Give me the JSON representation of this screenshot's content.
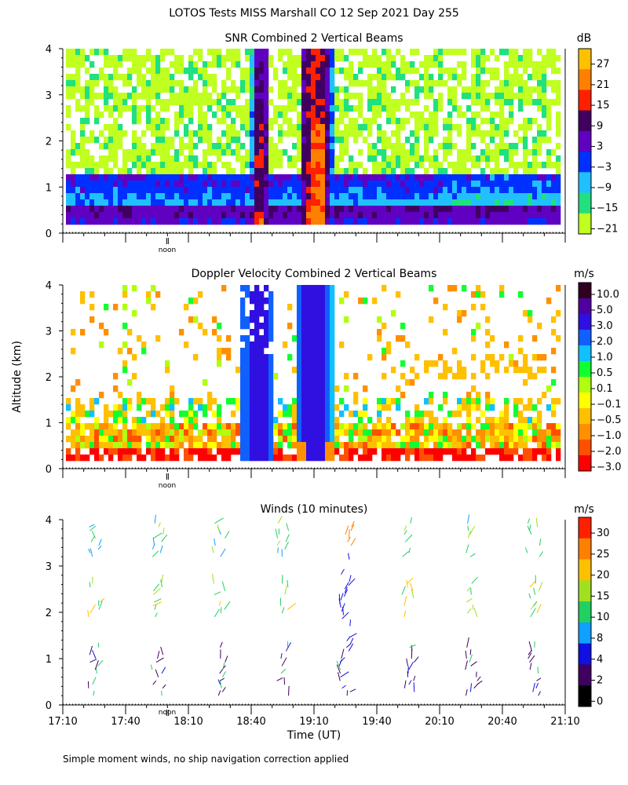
{
  "figure_title": "LOTOS Tests MISS Marshall CO  12 Sep 2021 Day 255",
  "footer_note": "Simple moment winds, no ship navigation correction applied",
  "noon_label": "noon",
  "y_axis_label": "Altitude (km)",
  "x_axis_label": "Time (UT)",
  "chart_data": [
    {
      "type": "heatmap",
      "title": "SNR Combined 2 Vertical Beams",
      "unit": "dB",
      "xlim": [
        "17:10",
        "21:10"
      ],
      "ylim": [
        0,
        4
      ],
      "y_ticks": [
        "0",
        "1",
        "2",
        "3",
        "4"
      ],
      "colorbar_labels": [
        "27",
        "21",
        "15",
        "9",
        "3",
        "−3",
        "−9",
        "−15",
        "−21"
      ],
      "colorbar_colors": [
        "#ffc000",
        "#ff8000",
        "#ff2000",
        "#400060",
        "#6000c0",
        "#0030ff",
        "#20c0ff",
        "#20e080",
        "#c0ff20"
      ],
      "features": [
        {
          "name": "plume-1",
          "time": "18:39",
          "height_km": [
            0.3,
            4.0
          ],
          "peak_snr_db": 21
        },
        {
          "name": "plume-2",
          "time": "19:09",
          "height_km": [
            0.3,
            4.0
          ],
          "peak_snr_db": 21
        },
        {
          "name": "boundary-layer",
          "height_km": [
            0.2,
            1.3
          ],
          "snr_db": 3
        }
      ]
    },
    {
      "type": "heatmap",
      "title": "Doppler Velocity Combined 2 Vertical Beams",
      "unit": "m/s",
      "xlim": [
        "17:10",
        "21:10"
      ],
      "ylim": [
        0,
        4
      ],
      "y_ticks": [
        "0",
        "1",
        "2",
        "3",
        "4"
      ],
      "colorbar_labels": [
        "10.0",
        "5.0",
        "3.0",
        "2.0",
        "1.0",
        "0.5",
        "0.1",
        "−0.1",
        "−0.5",
        "−1.0",
        "−2.0",
        "−3.0"
      ],
      "colorbar_colors": [
        "#300020",
        "#5000a0",
        "#3010e0",
        "#1060ff",
        "#10c0ff",
        "#10ff30",
        "#b0ff10",
        "#ffff00",
        "#ffc000",
        "#ff9000",
        "#ff5000",
        "#ff0000"
      ]
    },
    {
      "type": "scatter",
      "title": "Winds (10 minutes)",
      "unit": "m/s",
      "xlim": [
        "17:10",
        "21:10"
      ],
      "ylim": [
        0,
        4
      ],
      "y_ticks": [
        "0",
        "1",
        "2",
        "3",
        "4"
      ],
      "x_ticks": [
        "17:10",
        "17:40",
        "18:10",
        "18:40",
        "19:10",
        "19:40",
        "20:10",
        "20:40",
        "21:10"
      ],
      "colorbar_labels": [
        "30",
        "25",
        "20",
        "15",
        "10",
        "8",
        "4",
        "2",
        "0"
      ],
      "colorbar_colors": [
        "#ff2000",
        "#ff8000",
        "#ffc000",
        "#a0e020",
        "#20d060",
        "#10a0ff",
        "#1010e0",
        "#400060",
        "#000000"
      ],
      "profile_times": [
        "17:25",
        "17:55",
        "18:25",
        "18:55",
        "19:25",
        "19:55",
        "20:25",
        "20:55"
      ]
    }
  ]
}
